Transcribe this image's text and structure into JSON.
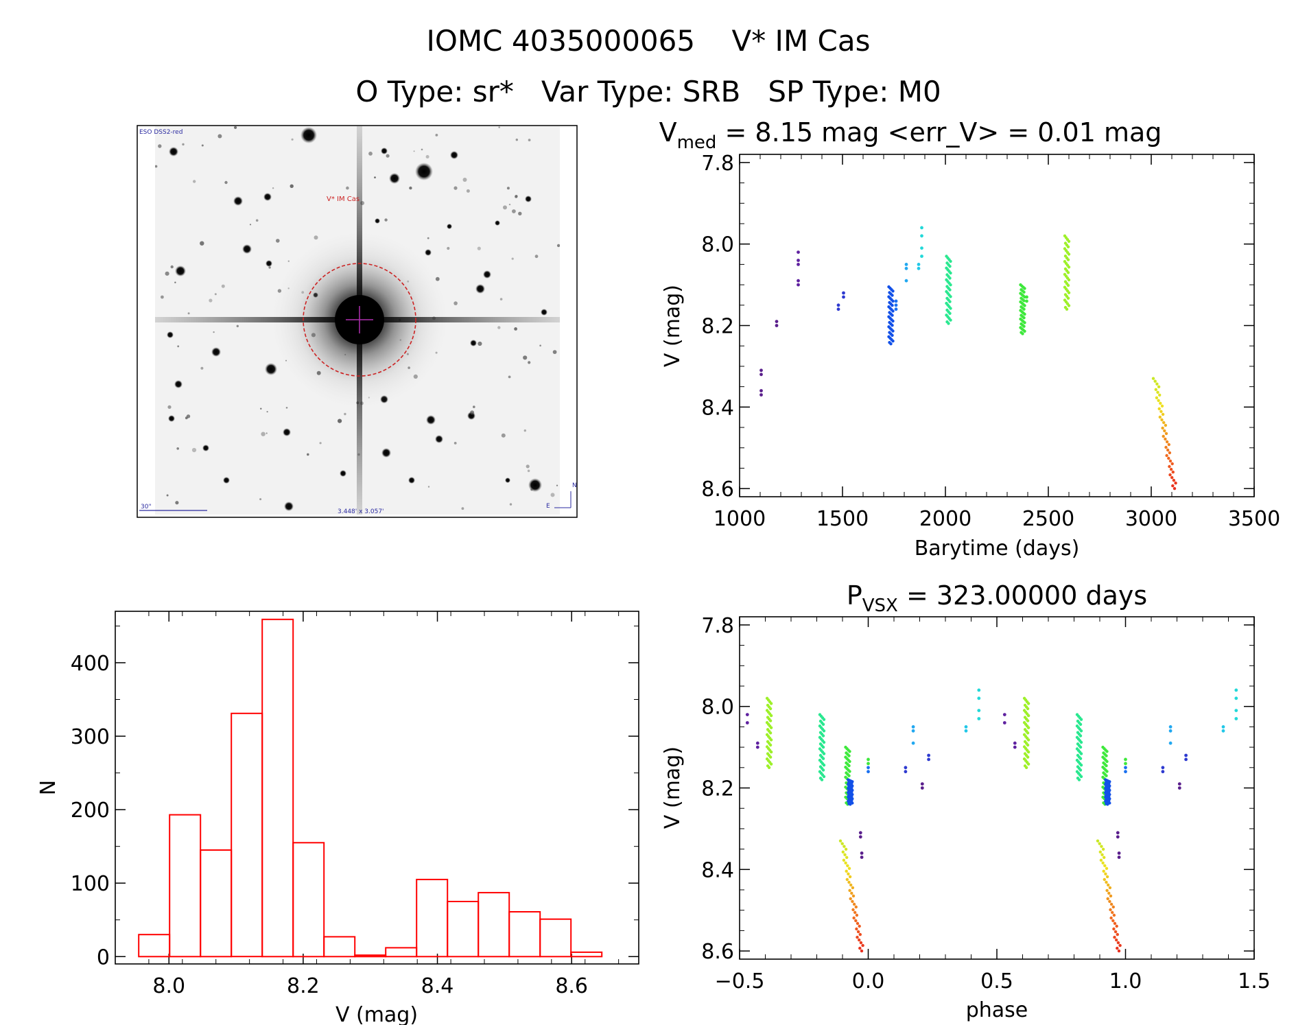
{
  "header": {
    "title": "IOMC 4035000065    V* IM Cas",
    "subtitle": "O Type: sr*   Var Type: SRB   SP Type: M0"
  },
  "finder": {
    "survey_label": "ESO DSS2-red",
    "target_label": "V* IM Cas",
    "scale_label": "30\"",
    "fov_label": "3.448' x 3.057'",
    "north_label": "N",
    "east_label": "E",
    "colors": {
      "circle": "#cc2222",
      "crosshair": "#b030b0",
      "annotation": "#2a2aa0",
      "target_text": "#cc2222"
    }
  },
  "chart_data": [
    {
      "id": "lightcurve",
      "type": "scatter",
      "title_parts": {
        "main": "V",
        "sub": "med",
        "rest": " = 8.15 mag <err_V> = 0.01 mag"
      },
      "xlabel": "Barytime (days)",
      "ylabel": "V (mag)",
      "xlim": [
        1000,
        3500
      ],
      "ylim": [
        8.62,
        7.78
      ],
      "y_inverted": true,
      "xticks": [
        1000,
        1500,
        2000,
        2500,
        3000,
        3500
      ],
      "xtick_labels": [
        "1000",
        "1500",
        "2000",
        "2500",
        "3000",
        "3500"
      ],
      "yticks": [
        7.8,
        8.0,
        8.2,
        8.4,
        8.6
      ],
      "ytick_labels": [
        "7.8",
        "8.0",
        "8.2",
        "8.4",
        "8.6"
      ],
      "color_scheme": "rainbow by time",
      "groups": [
        {
          "x": 1105,
          "y": [
            8.31,
            8.32,
            8.36,
            8.37
          ],
          "color": "#5a1f8c"
        },
        {
          "x": 1180,
          "y": [
            8.19,
            8.2
          ],
          "color": "#5a1f8c"
        },
        {
          "x": 1285,
          "y": [
            8.02,
            8.04,
            8.05,
            8.09,
            8.1
          ],
          "color": "#5f22a0"
        },
        {
          "x": 1480,
          "y": [
            8.15,
            8.16
          ],
          "color": "#2e3ad0"
        },
        {
          "x": 1505,
          "y": [
            8.12,
            8.13
          ],
          "color": "#2e3ad0"
        },
        {
          "x": 1735,
          "y": [
            8.105,
            8.245
          ],
          "range": true,
          "color": "#1250e8"
        },
        {
          "x": 1760,
          "y": [
            8.14,
            8.15,
            8.16
          ],
          "color": "#1a70f0"
        },
        {
          "x": 1810,
          "y": [
            8.05,
            8.06,
            8.09
          ],
          "color": "#22a8f0"
        },
        {
          "x": 1870,
          "y": [
            8.05,
            8.06
          ],
          "color": "#22c8e8"
        },
        {
          "x": 1885,
          "y": [
            7.96,
            7.98,
            8.01,
            8.03
          ],
          "color": "#22d8d8"
        },
        {
          "x": 2015,
          "y": [
            8.03,
            8.195
          ],
          "range": true,
          "color": "#2ae890"
        },
        {
          "x": 2375,
          "y": [
            8.1,
            8.22
          ],
          "range": true,
          "color": "#3ee83c"
        },
        {
          "x": 2395,
          "y": [
            8.13,
            8.14
          ],
          "color": "#3ee83c"
        },
        {
          "x": 2590,
          "y": [
            7.98,
            8.16
          ],
          "range": true,
          "color": "#9ef02a"
        },
        {
          "x": 3020,
          "y": [
            8.33,
            8.6
          ],
          "range": true,
          "color": "gradient",
          "gradient": [
            "#c8e826",
            "#f0e020",
            "#f09a20",
            "#f06020",
            "#e83020"
          ]
        }
      ]
    },
    {
      "id": "histogram",
      "type": "bar",
      "xlabel": "V (mag)",
      "ylabel": "N",
      "xlim": [
        7.92,
        8.7
      ],
      "ylim": [
        -10,
        470
      ],
      "xticks": [
        8.0,
        8.2,
        8.4,
        8.6
      ],
      "xtick_labels": [
        "8.0",
        "8.2",
        "8.4",
        "8.6"
      ],
      "yticks": [
        0,
        100,
        200,
        300,
        400
      ],
      "ytick_labels": [
        "0",
        "100",
        "200",
        "300",
        "400"
      ],
      "bin_width": 0.046,
      "bin_starts": [
        7.955,
        8.001,
        8.047,
        8.093,
        8.139,
        8.185,
        8.231,
        8.277,
        8.323,
        8.369,
        8.415,
        8.461,
        8.507,
        8.553,
        8.599
      ],
      "values": [
        30,
        193,
        145,
        331,
        459,
        155,
        27,
        2,
        12,
        105,
        75,
        87,
        61,
        51,
        6
      ],
      "color": "#ff0000"
    },
    {
      "id": "phased",
      "type": "scatter",
      "title_parts": {
        "main": "P",
        "sub": "VSX",
        "rest": " = 323.00000 days"
      },
      "xlabel": "phase",
      "ylabel": "V (mag)",
      "xlim": [
        -0.5,
        1.5
      ],
      "ylim": [
        8.62,
        7.78
      ],
      "y_inverted": true,
      "xticks": [
        -0.5,
        0.0,
        0.5,
        1.0,
        1.5
      ],
      "xtick_labels": [
        "−0.5",
        "0.0",
        "0.5",
        "1.0",
        "1.5"
      ],
      "yticks": [
        7.8,
        8.0,
        8.2,
        8.4,
        8.6
      ],
      "ytick_labels": [
        "7.8",
        "8.0",
        "8.2",
        "8.4",
        "8.6"
      ],
      "groups": [
        {
          "x": -0.47,
          "y": [
            8.02,
            8.04
          ],
          "color": "#5f22a0"
        },
        {
          "x": -0.43,
          "y": [
            8.09,
            8.1
          ],
          "color": "#5f22a0"
        },
        {
          "x": -0.385,
          "y": [
            7.98,
            8.15
          ],
          "range": true,
          "color": "#9ef02a"
        },
        {
          "x": -0.18,
          "y": [
            8.02,
            8.18
          ],
          "range": true,
          "color": "#2ae890"
        },
        {
          "x": -0.08,
          "y": [
            8.1,
            8.24
          ],
          "range": true,
          "color": "#3ee83c"
        },
        {
          "x": -0.07,
          "y": [
            8.18,
            8.24
          ],
          "range": true,
          "color": "#1250e8"
        },
        {
          "x": -0.03,
          "y": [
            8.31,
            8.32
          ],
          "color": "#5a1f8c"
        },
        {
          "x": -0.025,
          "y": [
            8.36,
            8.37
          ],
          "color": "#5a1f8c"
        },
        {
          "x": 0.0,
          "y": [
            8.13,
            8.14
          ],
          "color": "#3ee83c"
        },
        {
          "x": 0.0,
          "y": [
            8.15,
            8.16
          ],
          "color": "#1a70f0"
        },
        {
          "x": -0.1,
          "y": [
            8.33,
            8.6
          ],
          "range": true,
          "color": "gradient",
          "gradient": [
            "#c8e826",
            "#f0e020",
            "#f09a20",
            "#f06020",
            "#e83020"
          ]
        },
        {
          "x": 0.145,
          "y": [
            8.15,
            8.16
          ],
          "color": "#2e3ad0"
        },
        {
          "x": 0.175,
          "y": [
            8.05,
            8.06,
            8.09
          ],
          "color": "#22a8f0"
        },
        {
          "x": 0.21,
          "y": [
            8.19,
            8.2
          ],
          "color": "#5a1f8c"
        },
        {
          "x": 0.235,
          "y": [
            8.12,
            8.13
          ],
          "color": "#2e3ad0"
        },
        {
          "x": 0.38,
          "y": [
            8.05,
            8.06
          ],
          "color": "#22c8e8"
        },
        {
          "x": 0.43,
          "y": [
            7.96,
            7.98,
            8.01,
            8.03
          ],
          "color": "#22d8d8"
        }
      ],
      "repeat_offset": 1.0
    }
  ]
}
